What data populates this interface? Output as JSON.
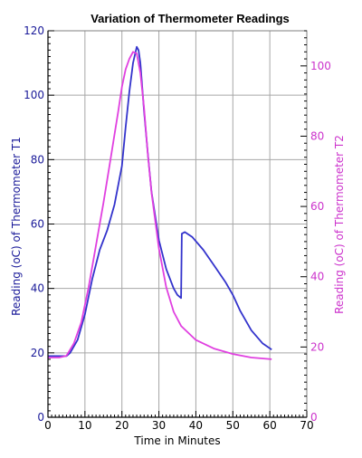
{
  "chart_data": {
    "type": "line",
    "title": "Variation of Thermometer Readings",
    "xlabel": "Time in Minutes",
    "ylabel_left": "Reading (oC) of Thermometer T1",
    "ylabel_right": "Reading (oC) of Thermometer T2",
    "xlim": [
      0,
      70
    ],
    "ylim_left": [
      0,
      120
    ],
    "ylim_right": [
      0,
      110
    ],
    "x_ticks": [
      0,
      10,
      20,
      30,
      40,
      50,
      60,
      70
    ],
    "y_ticks_left": [
      0,
      20,
      40,
      60,
      80,
      100,
      120
    ],
    "y_ticks_right": [
      0,
      20,
      40,
      60,
      80,
      100
    ],
    "grid": true,
    "colors": {
      "t1": "#3333cc",
      "t2": "#e040e0",
      "left_axis": "#1a1a99",
      "right_axis": "#cc33cc",
      "grid": "#a6a6a6"
    },
    "series": [
      {
        "axis": "left",
        "color": "#3333cc",
        "x": [
          0,
          5,
          6,
          8,
          10,
          12,
          14,
          16,
          18,
          20,
          21,
          22,
          23,
          24,
          24.5,
          25,
          26,
          27,
          28,
          30,
          32,
          34,
          35,
          36,
          36.2,
          37,
          39,
          42,
          45,
          48,
          50,
          52,
          55,
          58,
          60.5
        ],
        "y": [
          19,
          19,
          20,
          24,
          32,
          43,
          52,
          58,
          66,
          78,
          90,
          101,
          110,
          115,
          114,
          110,
          95,
          82,
          70,
          55,
          46,
          40,
          38,
          37,
          57,
          57.5,
          56,
          52,
          47,
          42,
          38,
          33,
          27,
          23,
          21
        ]
      },
      {
        "axis": "right",
        "color": "#e040e0",
        "x": [
          0,
          3,
          5,
          7,
          9,
          11,
          13,
          15,
          17,
          19,
          20,
          21,
          22,
          23,
          24,
          25,
          26,
          27,
          28,
          30,
          32,
          34,
          36,
          40,
          45,
          50,
          55,
          60.5
        ],
        "y": [
          17,
          17,
          17.5,
          21,
          27,
          37,
          49,
          61,
          74,
          87,
          94,
          99,
          102,
          104,
          103.5,
          98,
          88,
          75,
          64,
          48,
          37,
          30,
          26,
          22,
          19.5,
          18,
          17,
          16.5
        ]
      }
    ]
  }
}
